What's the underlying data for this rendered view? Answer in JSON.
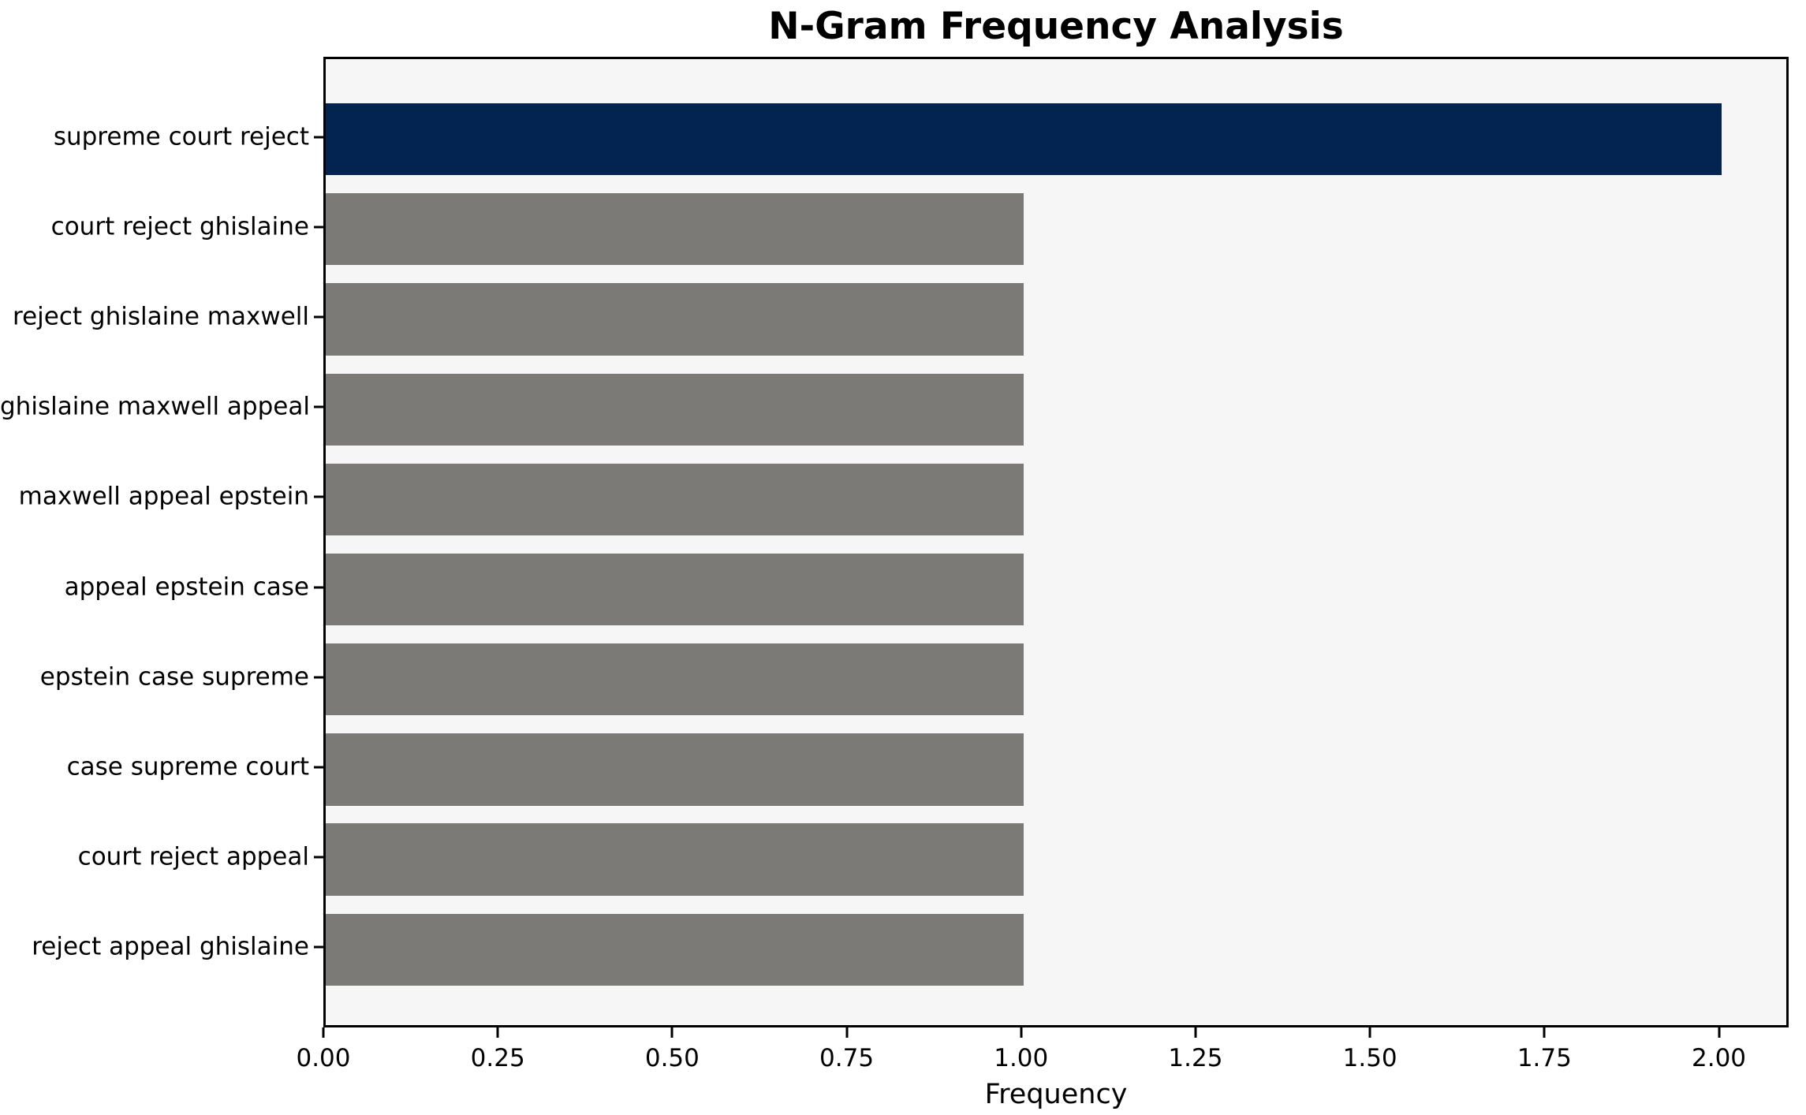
{
  "chart_data": {
    "type": "bar",
    "orientation": "horizontal",
    "title": "N-Gram Frequency Analysis",
    "xlabel": "Frequency",
    "ylabel": "",
    "categories": [
      "supreme court reject",
      "court reject ghislaine",
      "reject ghislaine maxwell",
      "ghislaine maxwell appeal",
      "maxwell appeal epstein",
      "appeal epstein case",
      "epstein case supreme",
      "case supreme court",
      "court reject appeal",
      "reject appeal ghislaine"
    ],
    "values": [
      2,
      1,
      1,
      1,
      1,
      1,
      1,
      1,
      1,
      1
    ],
    "bar_colors": [
      "#032450",
      "#7b7a77",
      "#7b7a77",
      "#7b7a77",
      "#7b7a77",
      "#7b7a77",
      "#7b7a77",
      "#7b7a77",
      "#7b7a77",
      "#7b7a77"
    ],
    "xlim": [
      0,
      2.1
    ],
    "xtick_values": [
      0,
      0.25,
      0.5,
      0.75,
      1.0,
      1.25,
      1.5,
      1.75,
      2.0
    ],
    "xtick_labels": [
      "0.00",
      "0.25",
      "0.50",
      "0.75",
      "1.00",
      "1.25",
      "1.50",
      "1.75",
      "2.00"
    ],
    "grid": false,
    "legend": null,
    "colors": {
      "highlight_bar": "#032450",
      "default_bar": "#7b7a77",
      "plot_background": "#f6f6f6",
      "figure_background": "#ffffff",
      "spine": "#000000",
      "text": "#000000"
    }
  }
}
